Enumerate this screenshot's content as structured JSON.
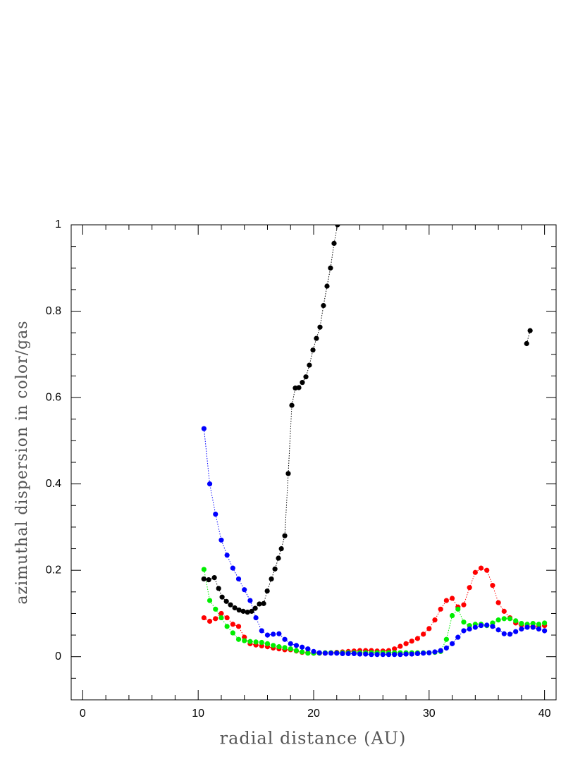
{
  "chart_data": {
    "type": "line",
    "xlabel": "radial distance (AU)",
    "ylabel": "azimuthal dispersion in color/gas",
    "xlim": [
      -1,
      41
    ],
    "ylim": [
      -0.1,
      1
    ],
    "xticks": [
      0,
      10,
      20,
      30,
      40
    ],
    "yticks": [
      0,
      0.2,
      0.4,
      0.6,
      0.8,
      1
    ],
    "xminorticks": [
      2,
      4,
      6,
      8,
      12,
      14,
      16,
      18,
      22,
      24,
      26,
      28,
      32,
      34,
      36,
      38
    ],
    "yminorticks": [
      -0.05,
      0.05,
      0.1,
      0.15,
      0.25,
      0.3,
      0.35,
      0.45,
      0.5,
      0.55,
      0.65,
      0.7,
      0.75,
      0.85,
      0.9,
      0.95
    ],
    "series": [
      {
        "color": "#000000",
        "x": [
          10.49,
          10.91,
          11.4,
          11.77,
          12.07,
          12.44,
          12.8,
          13.17,
          13.54,
          13.9,
          14.27,
          14.63,
          14.94,
          15.3,
          15.67,
          15.98,
          16.34,
          16.65,
          16.95,
          17.2,
          17.5,
          17.8,
          18.11,
          18.41,
          18.72,
          19.02,
          19.33,
          19.63,
          19.94,
          20.24,
          20.55,
          20.85,
          21.16,
          21.46,
          21.77,
          22.07,
          30,
          38.45,
          38.75
        ],
        "values": [
          0.18,
          0.178,
          0.183,
          0.158,
          0.138,
          0.128,
          0.12,
          0.113,
          0.108,
          0.105,
          0.103,
          0.105,
          0.112,
          0.122,
          0.123,
          0.152,
          0.18,
          0.203,
          0.228,
          0.25,
          0.28,
          0.424,
          0.582,
          0.622,
          0.623,
          0.635,
          0.648,
          0.675,
          0.71,
          0.737,
          0.763,
          0.813,
          0.858,
          0.9,
          0.957,
          1.0,
          null,
          0.725,
          0.755
        ]
      },
      {
        "color": "#ff0000",
        "x": [
          10.5,
          11,
          11.5,
          12,
          12.5,
          13,
          13.5,
          14,
          14.5,
          15,
          15.5,
          16,
          16.5,
          17,
          17.5,
          18,
          18.5,
          19,
          19.5,
          20,
          20.5,
          21,
          21.5,
          22,
          22.5,
          23,
          23.5,
          24,
          24.5,
          25,
          25.5,
          26,
          26.5,
          27,
          27.5,
          28,
          28.5,
          29,
          29.5,
          30,
          30.5,
          31,
          31.5,
          32,
          32.5,
          33,
          33.5,
          34,
          34.5,
          35,
          35.5,
          36,
          36.5,
          37,
          37.5,
          38,
          38.5,
          39,
          39.5,
          40
        ],
        "values": [
          0.09,
          0.082,
          0.088,
          0.1,
          0.09,
          0.075,
          0.07,
          0.045,
          0.03,
          0.027,
          0.025,
          0.023,
          0.02,
          0.018,
          0.016,
          0.016,
          0.013,
          0.01,
          0.009,
          0.008,
          0.008,
          0.008,
          0.009,
          0.01,
          0.011,
          0.012,
          0.013,
          0.014,
          0.014,
          0.014,
          0.013,
          0.013,
          0.014,
          0.018,
          0.024,
          0.03,
          0.036,
          0.042,
          0.052,
          0.065,
          0.085,
          0.11,
          0.13,
          0.135,
          0.115,
          0.12,
          0.16,
          0.195,
          0.205,
          0.2,
          0.165,
          0.125,
          0.105,
          0.09,
          0.078,
          0.073,
          0.07,
          0.07,
          0.07,
          0.072
        ]
      },
      {
        "color": "#00ee00",
        "x": [
          10.5,
          11,
          11.5,
          12,
          12.5,
          13,
          13.5,
          14,
          14.5,
          15,
          15.5,
          16,
          16.5,
          17,
          17.5,
          18,
          18.5,
          19,
          19.5,
          20,
          20.5,
          21,
          21.5,
          22,
          22.5,
          23,
          23.5,
          24,
          24.5,
          25,
          25.5,
          26,
          26.5,
          27,
          27.5,
          28,
          28.5,
          29,
          29.5,
          30,
          30.5,
          31,
          31.5,
          32,
          32.5,
          33,
          33.5,
          34,
          34.5,
          35,
          35.5,
          36,
          36.5,
          37,
          37.5,
          38,
          38.5,
          39,
          39.5,
          40
        ],
        "values": [
          0.202,
          0.13,
          0.11,
          0.09,
          0.07,
          0.055,
          0.04,
          0.037,
          0.035,
          0.034,
          0.033,
          0.03,
          0.026,
          0.023,
          0.021,
          0.018,
          0.014,
          0.011,
          0.008,
          0.008,
          0.008,
          0.009,
          0.009,
          0.009,
          0.009,
          0.009,
          0.009,
          0.009,
          0.009,
          0.009,
          0.009,
          0.009,
          0.009,
          0.009,
          0.009,
          0.009,
          0.009,
          0.009,
          0.009,
          0.009,
          0.01,
          0.012,
          0.04,
          0.095,
          0.11,
          0.08,
          0.072,
          0.075,
          0.075,
          0.072,
          0.078,
          0.085,
          0.088,
          0.088,
          0.083,
          0.077,
          0.075,
          0.077,
          0.075,
          0.078
        ]
      },
      {
        "color": "#0000ff",
        "x": [
          10.5,
          11,
          11.5,
          12,
          12.5,
          13,
          13.5,
          14,
          14.5,
          15,
          15.5,
          16,
          16.5,
          17,
          17.5,
          18,
          18.5,
          19,
          19.5,
          20,
          20.5,
          21,
          21.5,
          22,
          22.5,
          23,
          23.5,
          24,
          24.5,
          25,
          25.5,
          26,
          26.5,
          27,
          27.5,
          28,
          28.5,
          29,
          29.5,
          30,
          30.5,
          31,
          31.5,
          32,
          32.5,
          33,
          33.5,
          34,
          34.5,
          35,
          35.5,
          36,
          36.5,
          37,
          37.5,
          38,
          38.5,
          39,
          39.5,
          40
        ],
        "values": [
          0.528,
          0.4,
          0.33,
          0.27,
          0.235,
          0.205,
          0.18,
          0.155,
          0.13,
          0.09,
          0.06,
          0.05,
          0.052,
          0.053,
          0.04,
          0.03,
          0.026,
          0.022,
          0.018,
          0.012,
          0.009,
          0.008,
          0.008,
          0.008,
          0.007,
          0.007,
          0.007,
          0.006,
          0.006,
          0.005,
          0.005,
          0.005,
          0.005,
          0.005,
          0.005,
          0.006,
          0.006,
          0.007,
          0.008,
          0.009,
          0.011,
          0.014,
          0.02,
          0.03,
          0.045,
          0.06,
          0.064,
          0.068,
          0.072,
          0.073,
          0.07,
          0.062,
          0.053,
          0.052,
          0.058,
          0.064,
          0.068,
          0.068,
          0.064,
          0.06
        ]
      }
    ]
  }
}
